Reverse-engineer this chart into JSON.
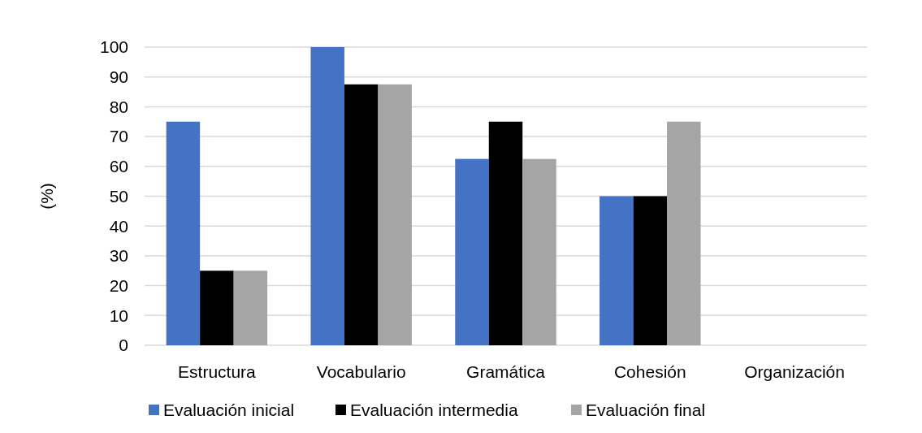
{
  "chart_data": {
    "type": "bar",
    "ylabel": "(%)",
    "categories": [
      "Estructura",
      "Vocabulario",
      "Gramática",
      "Cohesión",
      "Organización"
    ],
    "series": [
      {
        "name": "Evaluación inicial",
        "color": "#4472c4",
        "values": [
          75,
          100,
          62.5,
          50,
          0
        ]
      },
      {
        "name": "Evaluación intermedia",
        "color": "#000000",
        "values": [
          25,
          87.5,
          75,
          50,
          0
        ]
      },
      {
        "name": "Evaluación final",
        "color": "#a5a5a5",
        "values": [
          25,
          87.5,
          62.5,
          75,
          0
        ]
      }
    ],
    "ylim": [
      0,
      100
    ],
    "yticks": [
      0,
      10,
      20,
      30,
      40,
      50,
      60,
      70,
      80,
      90,
      100
    ],
    "grid": "y",
    "legend": "bottom"
  }
}
